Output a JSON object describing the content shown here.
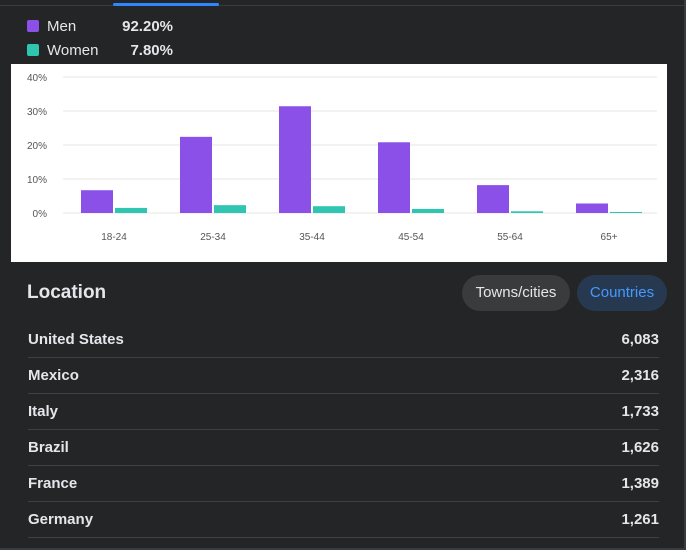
{
  "legend": [
    {
      "name": "Men",
      "value": "92.20%",
      "color": "#8b50e8"
    },
    {
      "name": "Women",
      "value": "7.80%",
      "color": "#2fc5b0"
    }
  ],
  "chart_data": {
    "type": "bar",
    "categories": [
      "18-24",
      "25-34",
      "35-44",
      "45-54",
      "55-64",
      "65+"
    ],
    "series": [
      {
        "name": "Men",
        "values": [
          6.7,
          22.4,
          31.4,
          20.8,
          8.2,
          2.8
        ],
        "color": "#8b50e8"
      },
      {
        "name": "Women",
        "values": [
          1.5,
          2.3,
          2.0,
          1.2,
          0.5,
          0.3
        ],
        "color": "#2fc5b0"
      }
    ],
    "ylim": [
      0,
      40
    ],
    "yticks": [
      "0%",
      "10%",
      "20%",
      "30%",
      "40%"
    ],
    "grid": true
  },
  "location": {
    "title": "Location",
    "tabs": {
      "towns": "Towns/cities",
      "countries": "Countries"
    },
    "rows": [
      {
        "name": "United States",
        "value": "6,083"
      },
      {
        "name": "Mexico",
        "value": "2,316"
      },
      {
        "name": "Italy",
        "value": "1,733"
      },
      {
        "name": "Brazil",
        "value": "1,626"
      },
      {
        "name": "France",
        "value": "1,389"
      },
      {
        "name": "Germany",
        "value": "1,261"
      }
    ]
  }
}
